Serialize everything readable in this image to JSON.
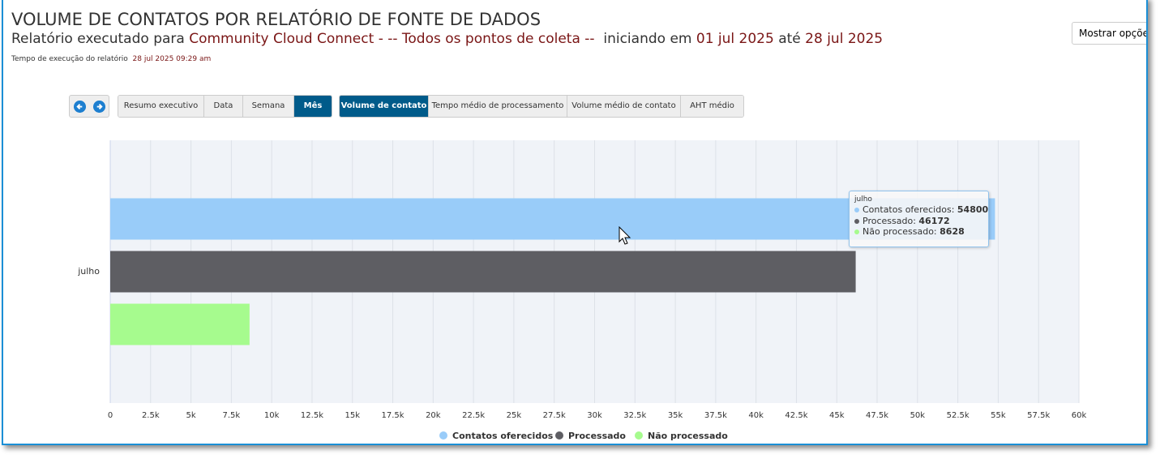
{
  "header": {
    "title": "VOLUME DE CONTATOS POR RELATÓRIO DE FONTE DE DADOS",
    "subtitle_prefix": "Relatório executado para",
    "source": "Community Cloud Connect",
    "collection": "- -- Todos os pontos de coleta --",
    "start_prefix": "iniciando em",
    "start": "01 jul 2025",
    "end_prefix": "até",
    "end": "28 jul 2025",
    "exec_label": "Tempo de execução do relatório",
    "exec_time": "28 jul 2025 09:29 am",
    "options_button": "Mostrar opções"
  },
  "period_tabs": [
    "Resumo executivo",
    "Data",
    "Semana",
    "Mês"
  ],
  "metric_tabs": [
    "Volume de contato",
    "Tempo médio de processamento",
    "Volume médio de contato",
    "AHT médio"
  ],
  "chart_data": {
    "type": "bar",
    "orientation": "horizontal",
    "categories": [
      "julho"
    ],
    "series": [
      {
        "name": "Contatos oferecidos",
        "color": "#99ccf9",
        "values": [
          54800
        ]
      },
      {
        "name": "Processado",
        "color": "#5e5e63",
        "values": [
          46172
        ]
      },
      {
        "name": "Não processado",
        "color": "#a6fb8e",
        "values": [
          8628
        ]
      }
    ],
    "xlim": [
      0,
      60000
    ],
    "xticks": [
      0,
      {
        "value": 2500,
        "label": "2.5k"
      },
      {
        "value": 5000,
        "label": "5k"
      },
      {
        "value": 7500,
        "label": "7.5k"
      },
      {
        "value": 10000,
        "label": "10k"
      },
      {
        "value": 12500,
        "label": "12.5k"
      },
      {
        "value": 15000,
        "label": "15k"
      },
      {
        "value": 17500,
        "label": "17.5k"
      },
      {
        "value": 20000,
        "label": "20k"
      },
      {
        "value": 22500,
        "label": "22.5k"
      },
      {
        "value": 25000,
        "label": "25k"
      },
      {
        "value": 27500,
        "label": "27.5k"
      },
      {
        "value": 30000,
        "label": "30k"
      },
      {
        "value": 32500,
        "label": "32.5k"
      },
      {
        "value": 35000,
        "label": "35k"
      },
      {
        "value": 37500,
        "label": "37.5k"
      },
      {
        "value": 40000,
        "label": "40k"
      },
      {
        "value": 42500,
        "label": "42.5k"
      },
      {
        "value": 45000,
        "label": "45k"
      },
      {
        "value": 47500,
        "label": "47.5k"
      },
      {
        "value": 50000,
        "label": "50k"
      },
      {
        "value": 52500,
        "label": "52.5k"
      },
      {
        "value": 55000,
        "label": "55k"
      },
      {
        "value": 57500,
        "label": "57.5k"
      },
      {
        "value": 60000,
        "label": "60k"
      }
    ],
    "grid": true,
    "tooltip_separator": ":"
  }
}
